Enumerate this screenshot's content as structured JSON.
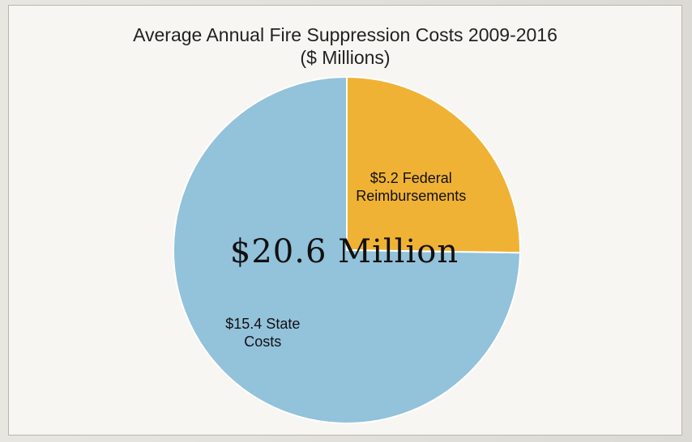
{
  "chart_data": {
    "type": "pie",
    "title": "Average Annual Fire Suppression Costs 2009-2016",
    "subtitle": "($ Millions)",
    "total_label": "$20.6 Million",
    "slices": [
      {
        "label_lines": [
          "$5.2 Federal",
          "Reimbursements"
        ],
        "value": 5.2,
        "color": "#f0b234"
      },
      {
        "label_lines": [
          "$15.4 State",
          "Costs"
        ],
        "value": 15.4,
        "color": "#93c2db"
      }
    ],
    "legend": "none"
  }
}
